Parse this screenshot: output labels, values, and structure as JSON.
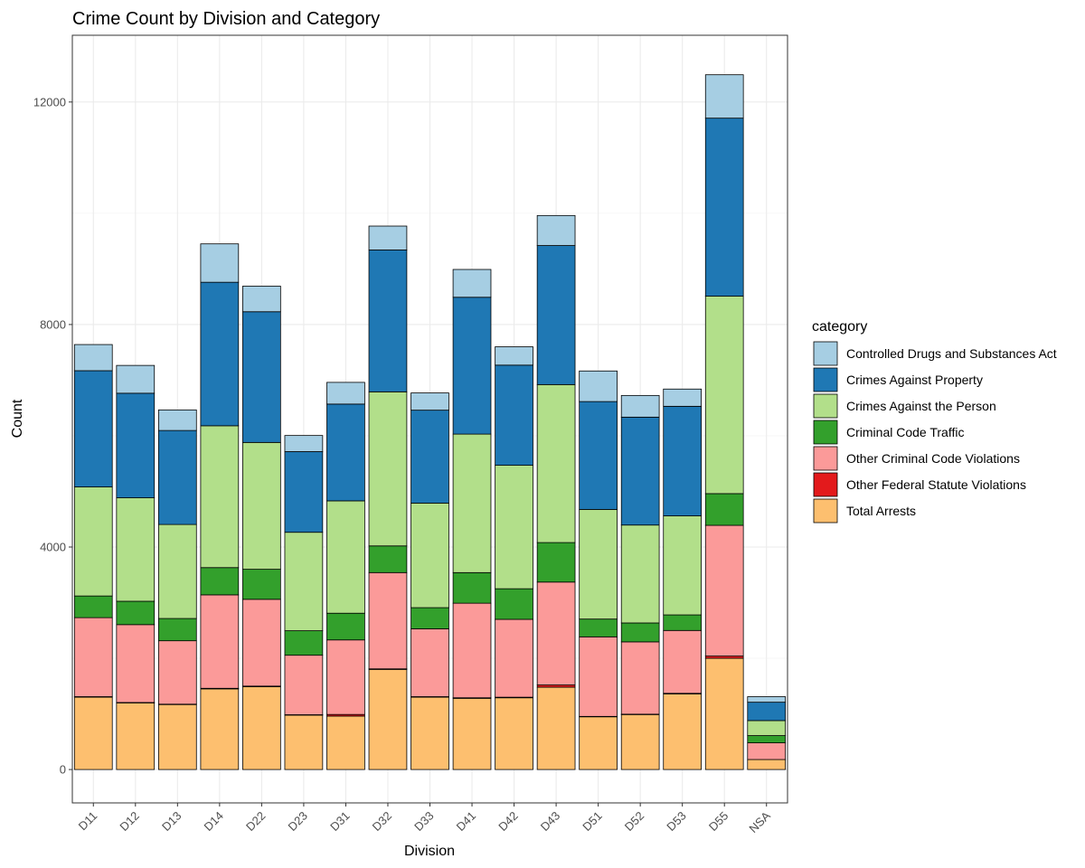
{
  "chart_data": {
    "type": "bar",
    "stacked": true,
    "title": "Crime Count by Division and Category",
    "xlabel": "Division",
    "ylabel": "Count",
    "ylim": [
      -600,
      13200
    ],
    "yticks": [
      0,
      4000,
      8000,
      12000
    ],
    "grid": true,
    "legend_position": "right",
    "legend_title": "category",
    "categories": [
      "D11",
      "D12",
      "D13",
      "D14",
      "D22",
      "D23",
      "D31",
      "D32",
      "D33",
      "D41",
      "D42",
      "D43",
      "D51",
      "D52",
      "D53",
      "D55",
      "NSA"
    ],
    "series": [
      {
        "name": "Total Arrests",
        "color": "#FDBF6F",
        "values": [
          1300,
          1200,
          1170,
          1450,
          1490,
          980,
          960,
          1800,
          1300,
          1280,
          1290,
          1480,
          950,
          990,
          1360,
          2000,
          180
        ]
      },
      {
        "name": "Other Federal Statute Violations",
        "color": "#E31A1C",
        "values": [
          10,
          5,
          5,
          10,
          10,
          5,
          30,
          10,
          10,
          10,
          10,
          40,
          5,
          5,
          10,
          40,
          0
        ]
      },
      {
        "name": "Other Criminal Code Violations",
        "color": "#FB9A99",
        "values": [
          1420,
          1400,
          1140,
          1680,
          1560,
          1070,
          1340,
          1730,
          1220,
          1700,
          1400,
          1850,
          1430,
          1300,
          1130,
          2350,
          300
        ]
      },
      {
        "name": "Criminal Code Traffic",
        "color": "#33A02C",
        "values": [
          390,
          420,
          400,
          490,
          540,
          440,
          480,
          480,
          380,
          550,
          550,
          710,
          320,
          340,
          280,
          570,
          130
        ]
      },
      {
        "name": "Crimes Against the Person",
        "color": "#B2DF8A",
        "values": [
          1960,
          1860,
          1690,
          2550,
          2280,
          1770,
          2020,
          2770,
          1880,
          2490,
          2220,
          2840,
          1970,
          1760,
          1780,
          3550,
          270
        ]
      },
      {
        "name": "Crimes Against Property",
        "color": "#1F78B4",
        "values": [
          2090,
          1880,
          1690,
          2580,
          2350,
          1450,
          1740,
          2550,
          1670,
          2460,
          1800,
          2500,
          1940,
          1940,
          1970,
          3200,
          330
        ]
      },
      {
        "name": "Controlled Drugs and Substances Act",
        "color": "#A6CEE3",
        "values": [
          470,
          500,
          370,
          690,
          460,
          290,
          390,
          430,
          310,
          500,
          330,
          540,
          550,
          390,
          310,
          780,
          100
        ]
      }
    ],
    "legend_order": [
      "Controlled Drugs and Substances Act",
      "Crimes Against Property",
      "Crimes Against the Person",
      "Criminal Code Traffic",
      "Other Criminal Code Violations",
      "Other Federal Statute Violations",
      "Total Arrests"
    ]
  }
}
